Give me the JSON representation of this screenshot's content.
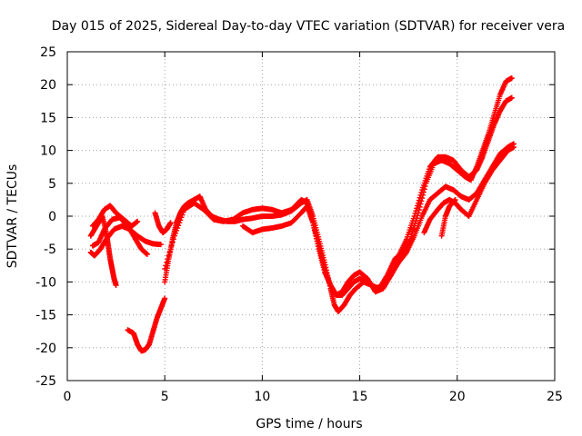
{
  "chart_data": {
    "type": "scatter",
    "title": "Day 015 of 2025, Sidereal Day-to-day VTEC variation (SDTVAR) for receiver vera",
    "xlabel": "GPS time / hours",
    "ylabel": "SDTVAR / TECUs",
    "xlim": [
      0,
      25
    ],
    "ylim": [
      -25,
      25
    ],
    "x_ticks": [
      0,
      5,
      10,
      15,
      20,
      25
    ],
    "y_ticks": [
      -25,
      -20,
      -15,
      -10,
      -5,
      0,
      5,
      10,
      15,
      20,
      25
    ],
    "x_tick_labels": [
      "0",
      "5",
      "10",
      "15",
      "20",
      "25"
    ],
    "y_tick_labels": [
      "-25",
      "-20",
      "-15",
      "-10",
      "-5",
      "0",
      "5",
      "10",
      "15",
      "20",
      "25"
    ],
    "grid": true,
    "marker": "plus",
    "series_color": "#ff0000",
    "series": [
      {
        "x": [
          1.3,
          1.6,
          1.9,
          2.2,
          2.5,
          2.9,
          3.3,
          3.6
        ],
        "y": [
          -1.5,
          -0.5,
          1.0,
          1.6,
          0.5,
          -0.5,
          -1.5,
          -0.8
        ]
      },
      {
        "x": [
          1.2,
          1.5,
          1.8,
          2.0,
          2.1,
          2.2,
          2.3,
          2.4,
          2.5
        ],
        "y": [
          -3.0,
          -1.5,
          0.0,
          -2.5,
          -4.5,
          -6.5,
          -8.0,
          -9.5,
          -10.5
        ]
      },
      {
        "x": [
          1.2,
          1.4,
          1.7,
          2.0,
          2.4,
          2.8,
          3.2,
          3.6,
          4.0,
          4.4,
          4.8
        ],
        "y": [
          -5.5,
          -6.0,
          -5.0,
          -3.5,
          -2.0,
          -1.5,
          -2.0,
          -3.0,
          -3.8,
          -4.2,
          -4.3
        ]
      },
      {
        "x": [
          1.3,
          1.6,
          1.9,
          2.3,
          2.7,
          3.1,
          3.5,
          3.8,
          4.1
        ],
        "y": [
          -4.5,
          -4.0,
          -2.0,
          -0.5,
          -0.2,
          -1.5,
          -3.5,
          -5.0,
          -5.8
        ]
      },
      {
        "x": [
          3.1,
          3.4,
          3.6,
          3.8,
          4.0,
          4.2,
          4.4,
          4.6,
          4.8,
          5.0
        ],
        "y": [
          -17.3,
          -17.8,
          -19.5,
          -20.5,
          -20.3,
          -19.5,
          -17.5,
          -15.5,
          -14.0,
          -12.5
        ]
      },
      {
        "x": [
          4.5,
          4.7,
          4.9,
          5.1,
          5.3
        ],
        "y": [
          0.5,
          -1.5,
          -2.5,
          -2.0,
          -1.0
        ]
      },
      {
        "x": [
          5.0,
          5.2,
          5.4,
          5.6,
          5.8,
          6.0,
          6.2,
          6.5,
          6.8,
          7.1,
          7.4,
          7.8,
          8.2,
          8.6,
          9.0,
          9.5,
          10.0,
          10.5,
          11.0,
          11.5,
          12.0,
          12.3,
          12.6,
          12.9,
          13.2,
          13.5,
          13.7,
          13.9,
          14.2,
          14.5,
          14.8,
          15.2,
          15.6,
          16.0,
          16.4,
          16.8,
          17.2,
          17.6,
          18.0,
          18.4,
          18.8,
          19.2,
          19.6,
          20.0,
          20.4,
          20.7,
          21.0,
          21.3,
          21.6,
          21.9,
          22.2,
          22.5,
          22.8
        ],
        "y": [
          -10.0,
          -6.5,
          -3.5,
          -1.0,
          0.5,
          1.5,
          2.0,
          2.5,
          3.0,
          1.0,
          0.0,
          -0.5,
          -0.8,
          -0.8,
          -0.5,
          -0.3,
          0.0,
          0.0,
          0.2,
          0.8,
          2.0,
          2.5,
          0.0,
          -3.5,
          -7.0,
          -11.0,
          -13.5,
          -14.5,
          -13.5,
          -12.0,
          -11.0,
          -10.0,
          -10.5,
          -11.0,
          -9.0,
          -6.5,
          -5.5,
          -3.5,
          0.5,
          5.0,
          8.0,
          8.5,
          8.0,
          7.0,
          6.0,
          5.5,
          7.5,
          10.0,
          12.5,
          15.5,
          18.5,
          20.5,
          21.0
        ]
      },
      {
        "x": [
          5.0,
          5.5,
          6.0,
          6.5,
          7.0,
          7.5,
          8.0,
          8.5,
          9.0,
          9.5,
          10.0,
          10.5,
          11.0,
          11.5,
          12.0,
          12.3,
          12.6,
          12.9,
          13.2,
          13.5,
          13.8,
          14.1,
          14.4,
          14.7,
          15.0,
          15.4,
          15.8,
          16.2,
          16.6,
          17.0,
          17.4,
          17.8,
          18.2,
          18.6,
          19.0,
          19.4,
          19.8,
          20.2,
          20.6,
          21.0,
          21.3,
          21.6,
          21.9,
          22.2,
          22.5,
          22.8
        ],
        "y": [
          -8.0,
          -3.0,
          1.0,
          2.0,
          1.0,
          -0.5,
          -0.8,
          -0.5,
          0.5,
          1.0,
          1.2,
          1.0,
          0.5,
          1.0,
          2.5,
          2.0,
          -1.0,
          -4.5,
          -8.0,
          -10.5,
          -12.0,
          -11.5,
          -10.0,
          -9.0,
          -8.5,
          -9.5,
          -11.5,
          -11.0,
          -9.0,
          -6.0,
          -3.5,
          0.0,
          4.0,
          7.5,
          9.0,
          9.0,
          8.5,
          7.0,
          6.0,
          7.0,
          9.0,
          11.5,
          14.0,
          16.0,
          17.5,
          18.0
        ]
      },
      {
        "x": [
          9.0,
          9.5,
          10.0,
          10.5,
          11.0,
          11.5,
          12.0,
          12.3,
          12.6,
          12.9,
          13.2,
          13.5,
          13.8,
          14.1,
          14.4,
          14.7,
          15.0,
          15.4,
          15.8,
          16.2,
          16.6,
          17.0,
          17.4,
          17.8,
          18.2,
          18.6,
          19.0,
          19.4,
          19.8,
          20.2,
          20.6,
          21.0,
          21.4,
          21.8,
          22.2,
          22.6,
          22.9
        ],
        "y": [
          -1.5,
          -2.5,
          -2.0,
          -1.8,
          -1.5,
          -1.0,
          0.5,
          1.5,
          -1.0,
          -5.0,
          -8.5,
          -10.5,
          -12.0,
          -12.0,
          -11.0,
          -10.0,
          -9.5,
          -10.0,
          -11.0,
          -10.5,
          -9.0,
          -7.0,
          -5.5,
          -3.0,
          0.0,
          2.5,
          3.5,
          4.5,
          4.0,
          3.0,
          2.5,
          3.5,
          5.5,
          7.5,
          9.5,
          10.5,
          11.0
        ]
      },
      {
        "x": [
          18.3,
          18.6,
          19.0,
          19.3,
          19.6,
          19.9,
          20.2,
          20.6,
          21.0,
          21.4,
          21.8,
          22.2,
          22.6,
          22.9
        ],
        "y": [
          -2.5,
          -0.5,
          1.0,
          2.0,
          2.5,
          2.0,
          1.0,
          0.0,
          2.5,
          5.0,
          7.0,
          8.5,
          10.0,
          10.5
        ]
      },
      {
        "x": [
          19.2,
          19.4,
          19.6,
          19.9
        ],
        "y": [
          -3.0,
          0.0,
          1.5,
          2.5
        ]
      }
    ]
  }
}
